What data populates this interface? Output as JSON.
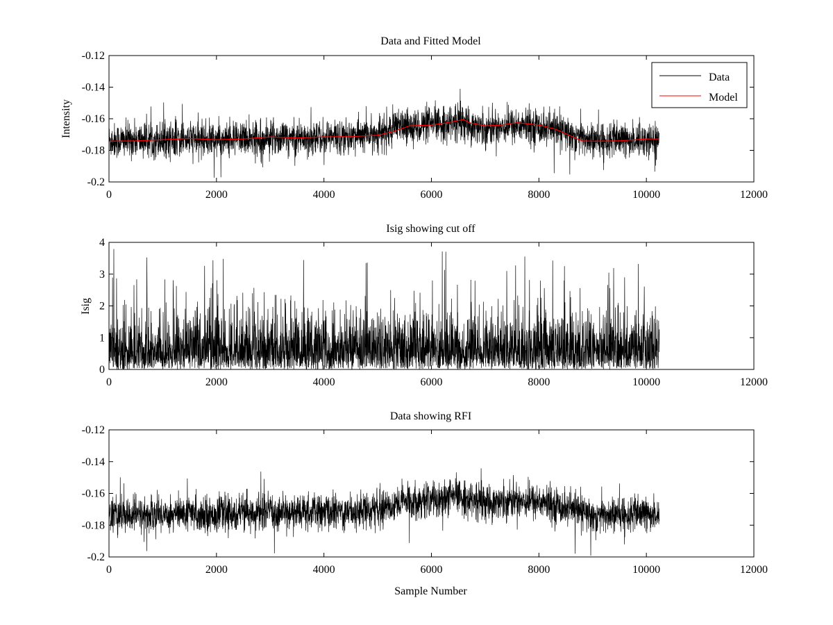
{
  "chart_data": [
    {
      "type": "line",
      "title": "Data and Fitted Model",
      "xlabel": "",
      "ylabel": "Intensity",
      "xlim": [
        0,
        12000
      ],
      "ylim": [
        -0.2,
        -0.12
      ],
      "xticks": [
        0,
        2000,
        4000,
        6000,
        8000,
        10000,
        12000
      ],
      "xtick_labels": [
        "0",
        "2000",
        "4000",
        "6000",
        "8000",
        "10000",
        "12000"
      ],
      "yticks": [
        -0.2,
        -0.18,
        -0.16,
        -0.14,
        -0.12
      ],
      "ytick_labels": [
        "-0.2",
        "-0.18",
        "-0.16",
        "-0.14",
        "-0.12"
      ],
      "legend": {
        "position": "top-right",
        "entries": [
          {
            "name": "Data",
            "color": "#000000"
          },
          {
            "name": "Model",
            "color": "#ff0000"
          }
        ]
      },
      "series": [
        {
          "name": "Data",
          "color": "#000000",
          "noise": true,
          "x_range": [
            0,
            10240
          ],
          "n_points": 10240,
          "baseline_x": [
            0,
            1000,
            2000,
            3000,
            4000,
            5000,
            5500,
            6000,
            6500,
            7000,
            7500,
            8000,
            8500,
            9000,
            10000,
            10240
          ],
          "baseline_y": [
            -0.174,
            -0.173,
            -0.173,
            -0.172,
            -0.172,
            -0.17,
            -0.165,
            -0.164,
            -0.162,
            -0.166,
            -0.164,
            -0.165,
            -0.169,
            -0.174,
            -0.173,
            -0.173
          ],
          "spread": [
            -0.012,
            0.012
          ]
        },
        {
          "name": "Model",
          "color": "#ff0000",
          "x": [
            0,
            500,
            1000,
            1500,
            2000,
            2500,
            3000,
            3500,
            4000,
            4500,
            5000,
            5300,
            5600,
            6000,
            6300,
            6600,
            6700,
            7000,
            7300,
            7600,
            8000,
            8300,
            8600,
            8800,
            9000,
            9500,
            10000,
            10240
          ],
          "y": [
            -0.1742,
            -0.174,
            -0.1733,
            -0.1725,
            -0.1733,
            -0.1728,
            -0.1715,
            -0.1722,
            -0.1715,
            -0.1713,
            -0.1705,
            -0.168,
            -0.1645,
            -0.164,
            -0.1625,
            -0.1605,
            -0.1625,
            -0.1645,
            -0.164,
            -0.1625,
            -0.164,
            -0.1665,
            -0.171,
            -0.174,
            -0.1742,
            -0.174,
            -0.1728,
            -0.1728
          ]
        }
      ]
    },
    {
      "type": "line",
      "title": "Isig showing cut off",
      "xlabel": "",
      "ylabel": "Isig",
      "xlim": [
        0,
        12000
      ],
      "ylim": [
        0,
        4
      ],
      "xticks": [
        0,
        2000,
        4000,
        6000,
        8000,
        10000,
        12000
      ],
      "xtick_labels": [
        "0",
        "2000",
        "4000",
        "6000",
        "8000",
        "10000",
        "12000"
      ],
      "yticks": [
        0,
        1,
        2,
        3,
        4
      ],
      "ytick_labels": [
        "0",
        "1",
        "2",
        "3",
        "4"
      ],
      "series": [
        {
          "name": "Isig",
          "color": "#000000",
          "noise": true,
          "x_range": [
            0,
            10240
          ],
          "n_points": 10240,
          "distribution": "halfnormal",
          "max": 3.8
        }
      ]
    },
    {
      "type": "line",
      "title": "Data showing RFI",
      "xlabel": "Sample Number",
      "ylabel": "",
      "xlim": [
        0,
        12000
      ],
      "ylim": [
        -0.2,
        -0.12
      ],
      "xticks": [
        0,
        2000,
        4000,
        6000,
        8000,
        10000,
        12000
      ],
      "xtick_labels": [
        "0",
        "2000",
        "4000",
        "6000",
        "8000",
        "10000",
        "12000"
      ],
      "yticks": [
        -0.2,
        -0.18,
        -0.16,
        -0.14,
        -0.12
      ],
      "ytick_labels": [
        "-0.2",
        "-0.18",
        "-0.16",
        "-0.14",
        "-0.12"
      ],
      "series": [
        {
          "name": "Data",
          "color": "#000000",
          "noise": true,
          "x_range": [
            0,
            10240
          ],
          "n_points": 10240,
          "baseline_x": [
            0,
            1000,
            2000,
            3000,
            4000,
            5000,
            5500,
            6000,
            6500,
            7000,
            7500,
            8000,
            8500,
            9000,
            10000,
            10240
          ],
          "baseline_y": [
            -0.174,
            -0.173,
            -0.173,
            -0.172,
            -0.172,
            -0.17,
            -0.165,
            -0.164,
            -0.162,
            -0.166,
            -0.164,
            -0.165,
            -0.169,
            -0.174,
            -0.173,
            -0.173
          ],
          "spread": [
            -0.012,
            0.012
          ]
        }
      ]
    }
  ]
}
